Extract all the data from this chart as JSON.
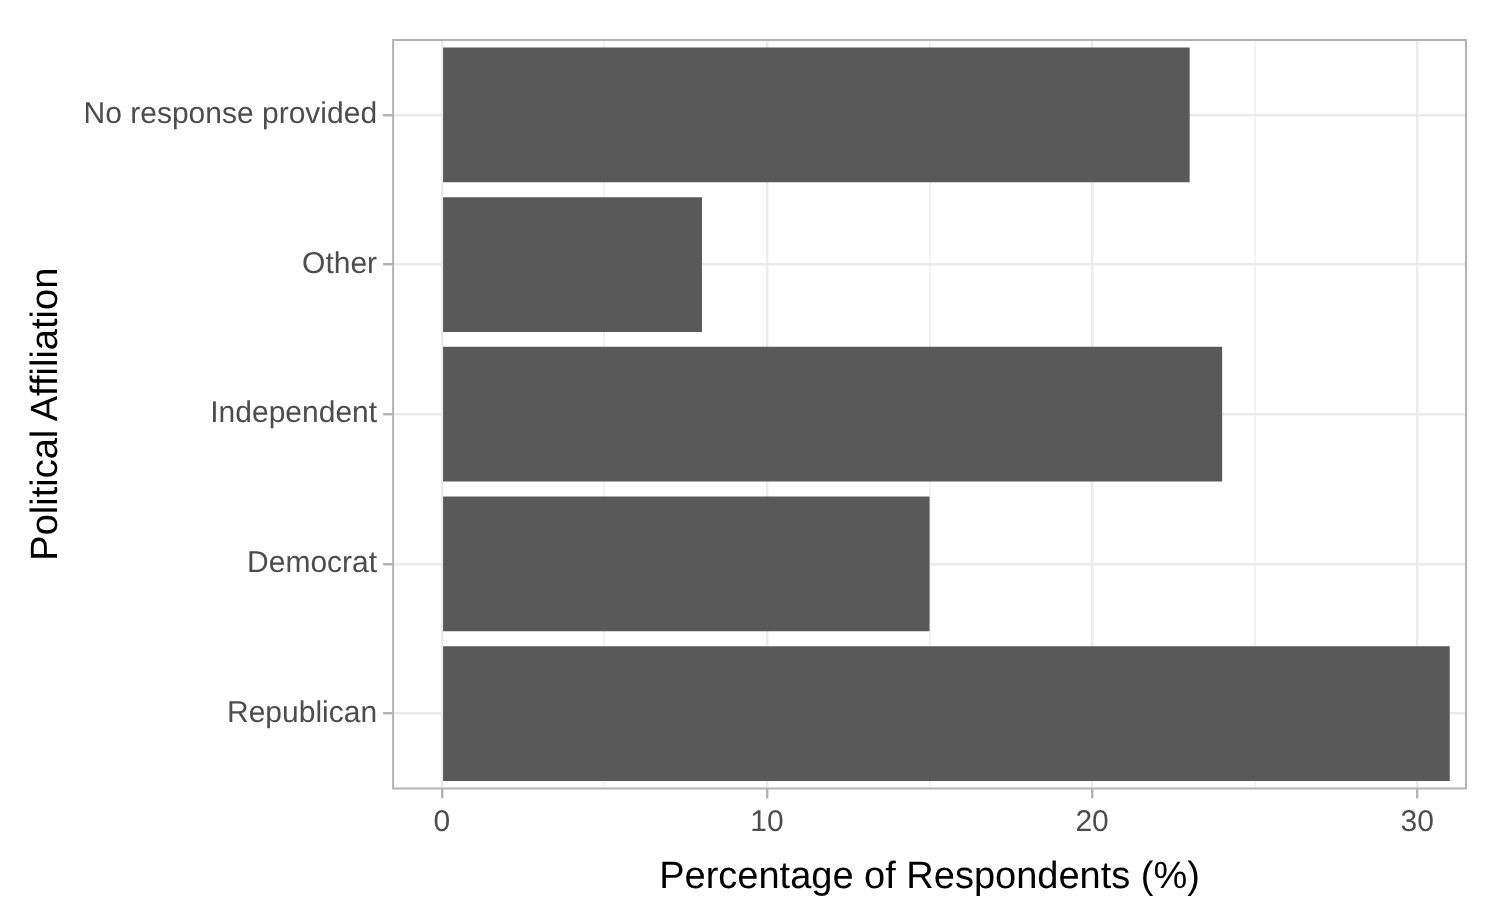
{
  "chart_data": {
    "type": "bar",
    "orientation": "horizontal",
    "xlabel": "Percentage of Respondents (%)",
    "ylabel": "Political Affiliation",
    "categories": [
      "No response provided",
      "Other",
      "Independent",
      "Democrat",
      "Republican"
    ],
    "values": [
      23,
      8,
      24,
      15,
      31
    ],
    "color": "#595959",
    "xlim": [
      -1.5,
      31.5
    ],
    "xticks": [
      0,
      {
        "value": 5,
        "label": null
      },
      10,
      {
        "value": 15,
        "label": null
      },
      20,
      {
        "value": 25,
        "label": null
      },
      30
    ],
    "grid": true
  }
}
